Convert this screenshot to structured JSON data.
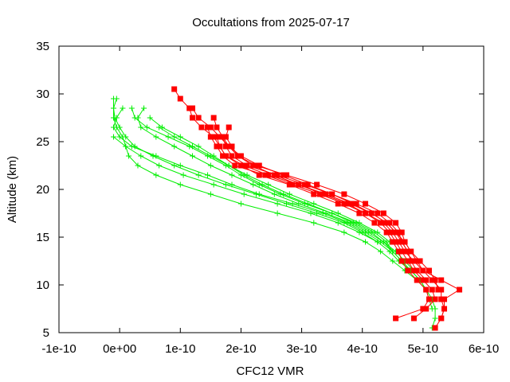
{
  "chart_data": {
    "type": "scatter",
    "title": "Occultations from 2025-07-17",
    "xlabel": "CFC12 VMR",
    "ylabel": "Altitude (km)",
    "xlim": [
      -1e-10,
      6e-10
    ],
    "ylim": [
      5,
      35
    ],
    "x_ticks": [
      -1e-10,
      0,
      1e-10,
      2e-10,
      3e-10,
      4e-10,
      5e-10,
      6e-10
    ],
    "x_tick_labels": [
      "-1e-10",
      "0e+00",
      "1e-10",
      "2e-10",
      "3e-10",
      "4e-10",
      "5e-10",
      "6e-10"
    ],
    "y_ticks": [
      5,
      10,
      15,
      20,
      25,
      30,
      35
    ],
    "y_tick_labels": [
      "5",
      "10",
      "15",
      "20",
      "25",
      "30",
      "35"
    ],
    "grid": false,
    "legend": "none",
    "colors": {
      "measured": "#ff0000",
      "model": "#00ee00",
      "frame": "#000000"
    },
    "series": [
      {
        "style": "measured",
        "marker": "square",
        "line": true,
        "altitudes": [
          30.5,
          29.5,
          28.5,
          27.5,
          26.5,
          25.5,
          24.5,
          23.5,
          22.5,
          21.5,
          20.5,
          19.5,
          18.5,
          17.5,
          16.5,
          15.5,
          14.5,
          13.5,
          12.5,
          11.5,
          10.5,
          9.5,
          8.5,
          7.5,
          6.5
        ],
        "values": [
          9e-11,
          1e-10,
          1.15e-10,
          1.2e-10,
          1.35e-10,
          1.55e-10,
          1.65e-10,
          1.75e-10,
          2e-10,
          2.3e-10,
          2.8e-10,
          3.2e-10,
          3.6e-10,
          3.95e-10,
          4.2e-10,
          4.4e-10,
          4.5e-10,
          4.6e-10,
          4.65e-10,
          4.75e-10,
          4.9e-10,
          5.05e-10,
          5.1e-10,
          5e-10,
          4.55e-10
        ]
      },
      {
        "style": "measured",
        "marker": "square",
        "line": true,
        "altitudes": [
          28.5,
          27.5,
          26.5,
          25.5,
          24.5,
          23.5,
          22.5,
          21.5,
          20.5,
          19.5,
          18.5,
          17.5,
          16.5,
          15.5,
          14.5,
          13.5,
          12.5,
          11.5,
          10.5,
          9.5,
          8.5,
          7.5,
          6.5
        ],
        "values": [
          1.2e-10,
          1.3e-10,
          1.5e-10,
          1.65e-10,
          1.8e-10,
          1.95e-10,
          2.2e-10,
          2.55e-10,
          2.95e-10,
          3.35e-10,
          3.75e-10,
          4.05e-10,
          4.3e-10,
          4.45e-10,
          4.55e-10,
          4.65e-10,
          4.75e-10,
          4.85e-10,
          5e-10,
          5.15e-10,
          5.2e-10,
          5.05e-10,
          4.85e-10
        ]
      },
      {
        "style": "measured",
        "marker": "square",
        "line": true,
        "altitudes": [
          27.5,
          26.5,
          25.5,
          24.5,
          23.5,
          22.5,
          21.5,
          20.5,
          19.5,
          18.5,
          17.5,
          16.5,
          15.5,
          14.5,
          13.5,
          12.5,
          11.5,
          10.5,
          9.5,
          8.5,
          7.5,
          6.5,
          5.5
        ],
        "values": [
          1.55e-10,
          1.6e-10,
          1.7e-10,
          1.8e-10,
          2e-10,
          2.3e-10,
          2.7e-10,
          3.1e-10,
          3.5e-10,
          3.85e-10,
          4.15e-10,
          4.4e-10,
          4.55e-10,
          4.7e-10,
          4.8e-10,
          4.9e-10,
          5e-10,
          5.15e-10,
          5.3e-10,
          5.3e-10,
          5.35e-10,
          5.3e-10,
          5.2e-10
        ]
      },
      {
        "style": "measured",
        "marker": "square",
        "line": true,
        "altitudes": [
          26.5,
          25.5,
          24.5,
          23.5,
          22.5,
          21.5,
          20.5,
          19.5,
          18.5,
          17.5,
          16.5,
          15.5,
          14.5,
          13.5,
          12.5,
          11.5,
          10.5,
          9.5,
          8.5,
          7.5,
          6.5
        ],
        "values": [
          1.45e-10,
          1.5e-10,
          1.6e-10,
          1.7e-10,
          1.9e-10,
          2.4e-10,
          2.85e-10,
          3.3e-10,
          3.7e-10,
          4.05e-10,
          4.35e-10,
          4.5e-10,
          4.6e-10,
          4.7e-10,
          4.85e-10,
          5e-10,
          5.3e-10,
          5.6e-10,
          5.35e-10,
          5.35e-10,
          5.3e-10
        ]
      },
      {
        "style": "measured",
        "marker": "square",
        "line": true,
        "altitudes": [
          26.5,
          25.5,
          24.5,
          23.5,
          22.5,
          21.5,
          20.5,
          19.5,
          18.5,
          17.5,
          16.5,
          15.5,
          14.5,
          13.5,
          12.5,
          11.5,
          10.5,
          9.5
        ],
        "values": [
          1.8e-10,
          1.75e-10,
          1.85e-10,
          1.95e-10,
          2.25e-10,
          2.75e-10,
          3.25e-10,
          3.7e-10,
          4.05e-10,
          4.35e-10,
          4.55e-10,
          4.65e-10,
          4.7e-10,
          4.8e-10,
          4.95e-10,
          5.1e-10,
          5.2e-10,
          5.25e-10
        ]
      },
      {
        "style": "measured",
        "marker": "square",
        "line": true,
        "altitudes": [
          25.5,
          24.5,
          23.5,
          22.5,
          21.5,
          20.5,
          19.5,
          18.5,
          17.5,
          16.5,
          15.5,
          14.5,
          13.5,
          12.5,
          11.5,
          10.5
        ],
        "values": [
          1.7e-10,
          1.75e-10,
          1.85e-10,
          2.1e-10,
          2.6e-10,
          3.05e-10,
          3.5e-10,
          3.9e-10,
          4.25e-10,
          4.45e-10,
          4.6e-10,
          4.65e-10,
          4.75e-10,
          4.8e-10,
          4.9e-10,
          5.05e-10
        ]
      },
      {
        "style": "measured",
        "marker": "square",
        "line": true,
        "altitudes": [
          25.5,
          24.5,
          23.5,
          22.5,
          21.5,
          20.5,
          19.5,
          18.5,
          17.5,
          16.5,
          15.5,
          14.5,
          13.5,
          12.5
        ],
        "values": [
          1.6e-10,
          1.65e-10,
          1.75e-10,
          2.05e-10,
          2.45e-10,
          2.95e-10,
          3.4e-10,
          3.8e-10,
          4.15e-10,
          4.4e-10,
          4.55e-10,
          4.65e-10,
          4.75e-10,
          4.8e-10
        ]
      },
      {
        "style": "model",
        "marker": "plus",
        "line": true,
        "altitudes": [
          29.5,
          28.5,
          27.5,
          26.5,
          25.5,
          24.5,
          23.5,
          22.5,
          21.5,
          20.5,
          19.5,
          18.5,
          17.5,
          16.5,
          15.5,
          14.5,
          13.5,
          12.5,
          11.5,
          10.5,
          9.5,
          8.5,
          7.5,
          6.5,
          5.5
        ],
        "values": [
          -1e-11,
          -1e-11,
          -1e-11,
          -5e-12,
          5e-12,
          1e-11,
          1.5e-11,
          3e-11,
          6e-11,
          1e-10,
          1.5e-10,
          2e-10,
          2.6e-10,
          3.2e-10,
          3.7e-10,
          4.05e-10,
          4.3e-10,
          4.5e-10,
          4.7e-10,
          4.9e-10,
          5.05e-10,
          5.15e-10,
          5.2e-10,
          5.2e-10,
          5.15e-10
        ]
      },
      {
        "style": "model",
        "marker": "plus",
        "line": true,
        "altitudes": [
          29.5,
          28.5,
          27.5,
          26.5,
          25.5,
          24.5,
          23.5,
          22.5,
          21.5,
          20.5,
          19.5,
          18.5,
          17.5,
          16.5,
          15.5,
          14.5,
          13.5,
          12.5,
          11.5,
          10.5,
          9.5,
          8.5,
          7.5
        ],
        "values": [
          -5e-12,
          -1e-11,
          -8e-12,
          0.0,
          1e-11,
          2.5e-11,
          5.5e-11,
          9e-11,
          1.3e-10,
          1.75e-10,
          2.25e-10,
          2.75e-10,
          3.25e-10,
          3.7e-10,
          4e-10,
          4.25e-10,
          4.45e-10,
          4.6e-10,
          4.8e-10,
          4.95e-10,
          5.05e-10,
          5.1e-10,
          5.15e-10
        ]
      },
      {
        "style": "model",
        "marker": "plus",
        "line": true,
        "altitudes": [
          28.5,
          27.5,
          26.5,
          25.5,
          24.5,
          23.5,
          22.5,
          21.5,
          20.5,
          19.5,
          18.5,
          17.5,
          16.5,
          15.5,
          14.5,
          13.5,
          12.5,
          11.5,
          10.5,
          9.5
        ],
        "values": [
          5e-12,
          -5e-12,
          -1e-11,
          0.0,
          2e-11,
          6e-11,
          1e-10,
          1.45e-10,
          1.85e-10,
          2.3e-10,
          2.85e-10,
          3.35e-10,
          3.75e-10,
          4.05e-10,
          4.3e-10,
          4.5e-10,
          4.65e-10,
          4.8e-10,
          4.95e-10,
          5.05e-10
        ]
      },
      {
        "style": "model",
        "marker": "plus",
        "line": true,
        "altitudes": [
          28.5,
          27.5,
          26.5,
          25.5,
          24.5,
          23.5,
          22.5,
          21.5,
          20.5,
          19.5,
          18.5,
          17.5,
          16.5,
          15.5,
          14.5,
          13.5,
          12.5,
          11.5
        ],
        "values": [
          4e-11,
          3e-11,
          3.5e-11,
          6e-11,
          9e-11,
          1.2e-10,
          1.5e-10,
          1.85e-10,
          2.2e-10,
          2.55e-10,
          2.95e-10,
          3.4e-10,
          3.8e-10,
          4.1e-10,
          4.35e-10,
          4.55e-10,
          4.7e-10,
          4.85e-10
        ]
      },
      {
        "style": "model",
        "marker": "plus",
        "line": true,
        "altitudes": [
          28.5,
          27.5,
          26.5,
          25.5,
          24.5,
          23.5,
          22.5,
          21.5,
          20.5,
          19.5,
          18.5,
          17.5,
          16.5,
          15.5,
          14.5,
          13.5
        ],
        "values": [
          2e-11,
          2.5e-11,
          4.5e-11,
          8e-11,
          1.15e-10,
          1.45e-10,
          1.75e-10,
          2e-10,
          2.3e-10,
          2.65e-10,
          3.05e-10,
          3.5e-10,
          3.9e-10,
          4.2e-10,
          4.4e-10,
          4.5e-10
        ]
      },
      {
        "style": "model",
        "marker": "plus",
        "line": true,
        "altitudes": [
          27.5,
          26.5,
          25.5,
          24.5,
          23.5,
          22.5,
          21.5,
          20.5,
          19.5,
          18.5,
          17.5,
          16.5,
          15.5,
          14.5,
          13.5
        ],
        "values": [
          5e-11,
          7e-11,
          1e-10,
          1.3e-10,
          1.55e-10,
          1.8e-10,
          2.05e-10,
          2.35e-10,
          2.7e-10,
          3.1e-10,
          3.5e-10,
          3.85e-10,
          4.15e-10,
          4.35e-10,
          4.5e-10
        ]
      },
      {
        "style": "model",
        "marker": "plus",
        "line": true,
        "altitudes": [
          26.5,
          25.5,
          24.5,
          23.5,
          22.5,
          21.5,
          20.5,
          19.5,
          18.5,
          17.5,
          16.5,
          15.5,
          14.5
        ],
        "values": [
          6.5e-11,
          9e-11,
          1.2e-10,
          1.5e-10,
          1.8e-10,
          2.1e-10,
          2.45e-10,
          2.8e-10,
          3.2e-10,
          3.6e-10,
          3.95e-10,
          4.25e-10,
          4.45e-10
        ]
      },
      {
        "style": "model",
        "marker": "plus",
        "line": true,
        "altitudes": [
          25.5,
          24.5,
          23.5,
          22.5,
          21.5,
          20.5,
          19.5,
          18.5,
          17.5,
          16.5,
          15.5,
          14.5
        ],
        "values": [
          -1e-11,
          1e-11,
          3.5e-11,
          6.5e-11,
          1.05e-10,
          1.55e-10,
          2.05e-10,
          2.6e-10,
          3.15e-10,
          3.6e-10,
          3.95e-10,
          4.25e-10
        ]
      }
    ]
  }
}
